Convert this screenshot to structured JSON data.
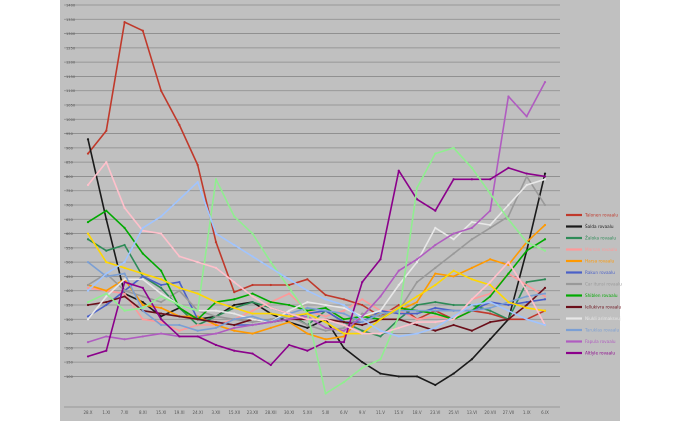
{
  "chart_data": {
    "type": "line",
    "title": "",
    "xlabel": "",
    "ylabel": "",
    "ylim": [
      0,
      1400
    ],
    "yticks": [
      100,
      150,
      200,
      250,
      300,
      350,
      400,
      450,
      500,
      550,
      600,
      650,
      700,
      750,
      800,
      850,
      900,
      950,
      1000,
      1050,
      1100,
      1150,
      1200,
      1250,
      1300,
      1350,
      1400
    ],
    "grid": "horizontal",
    "legend_position": "right",
    "categories": [
      "28.X",
      "1.XI",
      "7.XI",
      "8.XI",
      "15.XI",
      "19.XI",
      "24.XI",
      "3.XII",
      "15.XII",
      "23.XII",
      "28.XII",
      "30.XI",
      "5.XII",
      "5.III",
      "6.IV",
      "9.V",
      "11.V",
      "15.V",
      "18.V",
      "23.VI",
      "25.VI",
      "13.VI",
      "20.VII",
      "27.VII",
      "1.IX",
      "6.IX"
    ],
    "series": [
      {
        "name": "Talonen rovaalu",
        "color": "#c0392b",
        "values": [
          880,
          960,
          1340,
          1310,
          1100,
          980,
          840,
          570,
          395,
          420,
          420,
          420,
          440,
          385,
          370,
          350,
          310,
          350,
          300,
          330,
          300,
          330,
          320,
          300,
          300,
          330
        ]
      },
      {
        "name": "Šalda rovaalu",
        "color": "#1a1a1a",
        "values": [
          930,
          650,
          390,
          360,
          310,
          340,
          300,
          310,
          350,
          360,
          320,
          290,
          270,
          300,
          200,
          150,
          110,
          100,
          100,
          70,
          110,
          160,
          230,
          300,
          540,
          810
        ]
      },
      {
        "name": "Žaloka rovaalu",
        "color": "#2e8b57",
        "values": [
          580,
          540,
          560,
          450,
          410,
          340,
          280,
          310,
          340,
          360,
          340,
          320,
          280,
          330,
          290,
          260,
          240,
          300,
          350,
          360,
          350,
          350,
          330,
          300,
          430,
          440
        ]
      },
      {
        "name": "Marsan rovaalu",
        "color": "#ff9999",
        "values": [
          410,
          400,
          390,
          300,
          290,
          260,
          280,
          280,
          300,
          330,
          360,
          390,
          330,
          310,
          330,
          370,
          330,
          330,
          300,
          310,
          300,
          370,
          390,
          460,
          420,
          380
        ]
      },
      {
        "name": "Harsa rovaalu",
        "color": "#ff9900",
        "values": [
          420,
          400,
          440,
          350,
          340,
          310,
          310,
          280,
          260,
          250,
          270,
          290,
          250,
          230,
          240,
          310,
          320,
          330,
          360,
          460,
          450,
          480,
          510,
          490,
          570,
          630
        ]
      },
      {
        "name": "Rakun rovaalu",
        "color": "#4a60c8",
        "values": [
          310,
          350,
          400,
          450,
          420,
          430,
          300,
          290,
          280,
          280,
          290,
          300,
          320,
          330,
          290,
          290,
          330,
          320,
          320,
          340,
          330,
          330,
          360,
          350,
          360,
          370
        ]
      },
      {
        "name": "Car itunsi rovaalu",
        "color": "#999999",
        "values": [
          420,
          460,
          400,
          380,
          360,
          400,
          330,
          310,
          300,
          290,
          300,
          310,
          280,
          260,
          270,
          320,
          310,
          330,
          430,
          480,
          530,
          580,
          620,
          660,
          800,
          700
        ]
      },
      {
        "name": "Shiblen rovaalu",
        "color": "#00aa00",
        "values": [
          640,
          680,
          620,
          530,
          470,
          340,
          300,
          360,
          370,
          390,
          360,
          350,
          330,
          340,
          300,
          310,
          300,
          340,
          330,
          320,
          300,
          330,
          380,
          460,
          540,
          580
        ]
      },
      {
        "name": "Iellukivra rovaalu",
        "color": "#6b0f1a",
        "values": [
          350,
          360,
          380,
          330,
          320,
          310,
          300,
          290,
          280,
          300,
          290,
          300,
          300,
          300,
          290,
          280,
          300,
          300,
          280,
          260,
          280,
          260,
          290,
          300,
          350,
          410
        ]
      },
      {
        "name": "Niukli arimaksvuj",
        "color": "#e8e8e8",
        "values": [
          300,
          380,
          440,
          440,
          390,
          350,
          330,
          330,
          320,
          300,
          290,
          330,
          360,
          350,
          340,
          310,
          330,
          420,
          500,
          620,
          580,
          640,
          630,
          700,
          770,
          790
        ]
      },
      {
        "name": "Taruklas rovaalu",
        "color": "#7b9fd4",
        "values": [
          500,
          450,
          460,
          330,
          280,
          280,
          260,
          270,
          300,
          310,
          290,
          320,
          340,
          330,
          320,
          290,
          320,
          330,
          330,
          330,
          330,
          330,
          340,
          360,
          380,
          390
        ]
      },
      {
        "name": "Fapula rovaalu",
        "color": "#b05cc0",
        "values": [
          220,
          240,
          230,
          240,
          250,
          240,
          240,
          250,
          270,
          280,
          290,
          300,
          310,
          270,
          260,
          310,
          380,
          470,
          510,
          560,
          600,
          620,
          680,
          1080,
          1010,
          1130
        ]
      },
      {
        "name": "Altlyle rovaalu",
        "color": "#8b008b",
        "values": [
          170,
          190,
          430,
          410,
          300,
          240,
          240,
          210,
          190,
          180,
          140,
          210,
          190,
          220,
          220,
          430,
          510,
          820,
          720,
          680,
          790,
          790,
          790,
          830,
          810,
          800
        ]
      },
      {
        "name": "",
        "color": "#90ee90",
        "values": [
          360,
          390,
          330,
          340,
          380,
          350,
          330,
          790,
          660,
          600,
          500,
          410,
          320,
          40,
          80,
          130,
          160,
          310,
          760,
          880,
          900,
          830,
          740,
          650,
          570,
          540
        ]
      },
      {
        "name": "",
        "color": "#ffd700",
        "values": [
          600,
          500,
          480,
          460,
          440,
          410,
          390,
          360,
          340,
          320,
          320,
          310,
          320,
          290,
          250,
          250,
          300,
          340,
          380,
          420,
          470,
          440,
          420,
          360,
          340,
          330
        ]
      },
      {
        "name": "",
        "color": "#ffc0cb",
        "values": [
          770,
          850,
          690,
          610,
          600,
          520,
          500,
          480,
          430,
          380,
          340,
          320,
          300,
          300,
          280,
          250,
          250,
          270,
          290,
          290,
          300,
          370,
          430,
          500,
          400,
          280
        ]
      },
      {
        "name": "",
        "color": "#a0c4ff",
        "values": [
          400,
          460,
          500,
          620,
          660,
          720,
          780,
          600,
          560,
          520,
          480,
          440,
          400,
          370,
          350,
          300,
          260,
          240,
          250,
          270,
          310,
          350,
          360,
          330,
          300,
          280
        ]
      }
    ]
  }
}
